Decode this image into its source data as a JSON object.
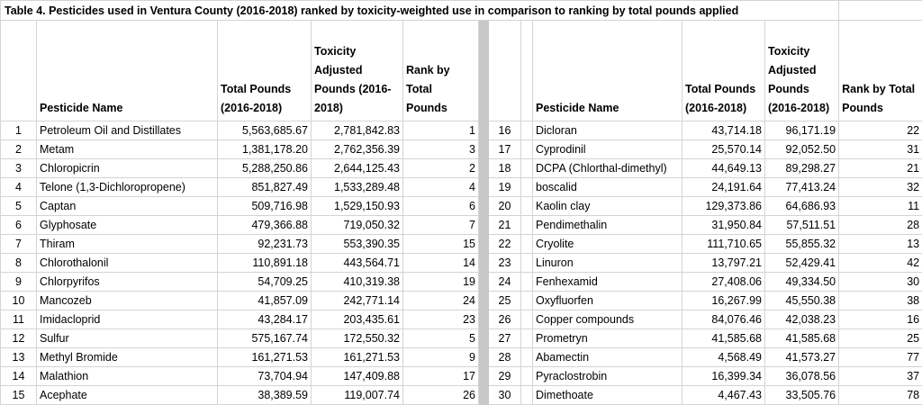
{
  "title": "Table 4. Pesticides used in Ventura County (2016-2018) ranked by toxicity-weighted use in comparison to ranking by total pounds applied",
  "headers": {
    "name": "Pesticide Name",
    "total": "Total Pounds (2016-2018)",
    "tox_left": "Toxicity Adjusted Pounds (2016-2018)",
    "tox_right": "Toxicity Adjusted Pounds (2016-2018)",
    "rank": "Rank by Total Pounds"
  },
  "left_rows": [
    [
      "1",
      "Petroleum Oil and Distillates",
      "5,563,685.67",
      "2,781,842.83",
      "1"
    ],
    [
      "2",
      "Metam",
      "1,381,178.20",
      "2,762,356.39",
      "3"
    ],
    [
      "3",
      "Chloropicrin",
      "5,288,250.86",
      "2,644,125.43",
      "2"
    ],
    [
      "4",
      "Telone (1,3-Dichloropropene)",
      "851,827.49",
      "1,533,289.48",
      "4"
    ],
    [
      "5",
      "Captan",
      "509,716.98",
      "1,529,150.93",
      "6"
    ],
    [
      "6",
      "Glyphosate",
      "479,366.88",
      "719,050.32",
      "7"
    ],
    [
      "7",
      "Thiram",
      "92,231.73",
      "553,390.35",
      "15"
    ],
    [
      "8",
      "Chlorothalonil",
      "110,891.18",
      "443,564.71",
      "14"
    ],
    [
      "9",
      "Chlorpyrifos",
      "54,709.25",
      "410,319.38",
      "19"
    ],
    [
      "10",
      "Mancozeb",
      "41,857.09",
      "242,771.14",
      "24"
    ],
    [
      "11",
      "Imidacloprid",
      "43,284.17",
      "203,435.61",
      "23"
    ],
    [
      "12",
      "Sulfur",
      "575,167.74",
      "172,550.32",
      "5"
    ],
    [
      "13",
      "Methyl Bromide",
      "161,271.53",
      "161,271.53",
      "9"
    ],
    [
      "14",
      "Malathion",
      "73,704.94",
      "147,409.88",
      "17"
    ],
    [
      "15",
      "Acephate",
      "38,389.59",
      "119,007.74",
      "26"
    ]
  ],
  "right_rows": [
    [
      "16",
      "Dicloran",
      "43,714.18",
      "96,171.19",
      "22"
    ],
    [
      "17",
      "Cyprodinil",
      "25,570.14",
      "92,052.50",
      "31"
    ],
    [
      "18",
      "DCPA (Chlorthal-dimethyl)",
      "44,649.13",
      "89,298.27",
      "21"
    ],
    [
      "19",
      "boscalid",
      "24,191.64",
      "77,413.24",
      "32"
    ],
    [
      "20",
      "Kaolin clay",
      "129,373.86",
      "64,686.93",
      "11"
    ],
    [
      "21",
      "Pendimethalin",
      "31,950.84",
      "57,511.51",
      "28"
    ],
    [
      "22",
      "Cryolite",
      "111,710.65",
      "55,855.32",
      "13"
    ],
    [
      "23",
      "Linuron",
      "13,797.21",
      "52,429.41",
      "42"
    ],
    [
      "24",
      "Fenhexamid",
      "27,408.06",
      "49,334.50",
      "30"
    ],
    [
      "25",
      "Oxyfluorfen",
      "16,267.99",
      "45,550.38",
      "38"
    ],
    [
      "26",
      "Copper compounds",
      "84,076.46",
      "42,038.23",
      "16"
    ],
    [
      "27",
      "Prometryn",
      "41,585.68",
      "41,585.68",
      "25"
    ],
    [
      "28",
      "Abamectin",
      "4,568.49",
      "41,573.27",
      "77"
    ],
    [
      "29",
      "Pyraclostrobin",
      "16,399.34",
      "36,078.56",
      "37"
    ],
    [
      "30",
      "Dimethoate",
      "4,467.43",
      "33,505.76",
      "78"
    ]
  ]
}
